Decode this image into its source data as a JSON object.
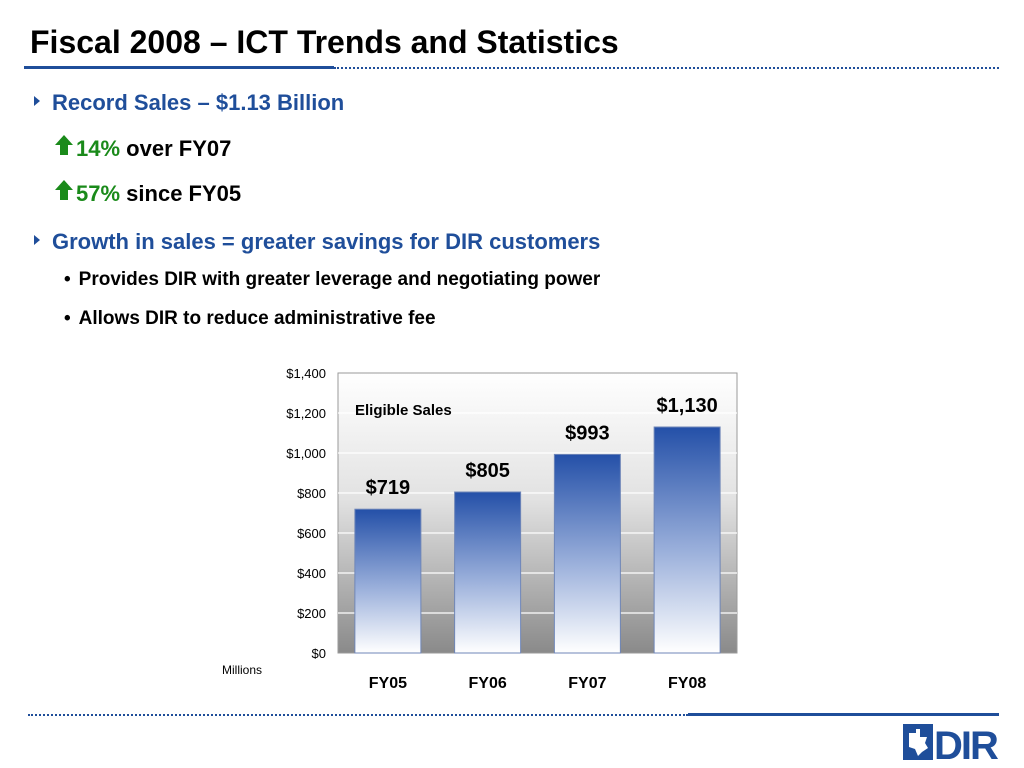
{
  "slide": {
    "title": "Fiscal 2008 – ICT Trends and Statistics"
  },
  "bullets": {
    "b1": "Record Sales – $1.13 Billion",
    "b1a_pct": "14%",
    "b1a_rest": "over FY07",
    "b1b_pct": "57%",
    "b1b_rest": "since FY05",
    "b2": "Growth in sales = greater savings for DIR customers",
    "b2a": "Provides DIR with greater leverage and negotiating power",
    "b2b": "Allows DIR to reduce administrative fee"
  },
  "icons": {
    "level1": "triangle-right-icon",
    "increase": "up-arrow-icon",
    "logo": "dir-logo"
  },
  "colors": {
    "accent": "#1f4e9a",
    "increase": "#1a8a1a",
    "bar_top": "#2450a8",
    "bar_bottom": "#ffffff"
  },
  "chart_data": {
    "type": "bar",
    "title": "Eligible Sales",
    "categories": [
      "FY05",
      "FY06",
      "FY07",
      "FY08"
    ],
    "values": [
      719,
      805,
      993,
      1130
    ],
    "data_labels": [
      "$719",
      "$805",
      "$993",
      "$1,130"
    ],
    "ylim": [
      0,
      1400
    ],
    "yticks": [
      0,
      200,
      400,
      600,
      800,
      1000,
      1200,
      1400
    ],
    "ytick_labels": [
      "$0",
      "$200",
      "$400",
      "$600",
      "$800",
      "$1,000",
      "$1,200",
      "$1,400"
    ],
    "unit_label": "Millions",
    "grid": true,
    "legend": "none"
  },
  "logo": {
    "text": "DIR"
  }
}
